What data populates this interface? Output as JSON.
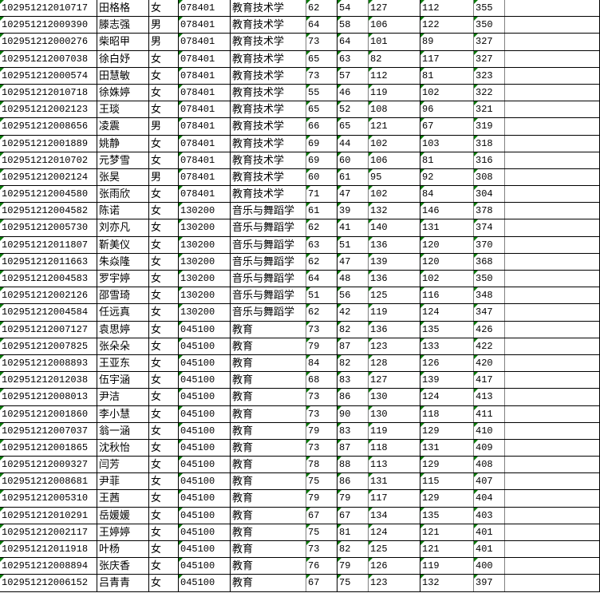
{
  "indicator_color": "#0a7a0a",
  "rows": [
    [
      "102951212010717",
      "田格格",
      "女",
      "078401",
      "教育技术学",
      "62",
      "54",
      "127",
      "112",
      "355"
    ],
    [
      "102951212009390",
      "滕志强",
      "男",
      "078401",
      "教育技术学",
      "64",
      "58",
      "106",
      "122",
      "350"
    ],
    [
      "102951212000276",
      "柴昭甲",
      "男",
      "078401",
      "教育技术学",
      "73",
      "64",
      "101",
      "89",
      "327"
    ],
    [
      "102951212007038",
      "徐白妤",
      "女",
      "078401",
      "教育技术学",
      "65",
      "63",
      "82",
      "117",
      "327"
    ],
    [
      "102951212000574",
      "田慧敏",
      "女",
      "078401",
      "教育技术学",
      "73",
      "57",
      "112",
      "81",
      "323"
    ],
    [
      "102951212010718",
      "徐姝婷",
      "女",
      "078401",
      "教育技术学",
      "55",
      "46",
      "119",
      "102",
      "322"
    ],
    [
      "102951212002123",
      "王琰",
      "女",
      "078401",
      "教育技术学",
      "65",
      "52",
      "108",
      "96",
      "321"
    ],
    [
      "102951212008656",
      "凌震",
      "男",
      "078401",
      "教育技术学",
      "66",
      "65",
      "121",
      "67",
      "319"
    ],
    [
      "102951212001889",
      "姚静",
      "女",
      "078401",
      "教育技术学",
      "69",
      "44",
      "102",
      "103",
      "318"
    ],
    [
      "102951212010702",
      "元梦雪",
      "女",
      "078401",
      "教育技术学",
      "69",
      "60",
      "106",
      "81",
      "316"
    ],
    [
      "102951212002124",
      "张昊",
      "男",
      "078401",
      "教育技术学",
      "60",
      "61",
      "95",
      "92",
      "308"
    ],
    [
      "102951212004580",
      "张雨欣",
      "女",
      "078401",
      "教育技术学",
      "71",
      "47",
      "102",
      "84",
      "304"
    ],
    [
      "102951212004582",
      "陈诺",
      "女",
      "130200",
      "音乐与舞蹈学",
      "61",
      "39",
      "132",
      "146",
      "378"
    ],
    [
      "102951212005730",
      "刘亦凡",
      "女",
      "130200",
      "音乐与舞蹈学",
      "62",
      "41",
      "140",
      "131",
      "374"
    ],
    [
      "102951212011807",
      "靳美仪",
      "女",
      "130200",
      "音乐与舞蹈学",
      "63",
      "51",
      "136",
      "120",
      "370"
    ],
    [
      "102951212011663",
      "朱焱隆",
      "女",
      "130200",
      "音乐与舞蹈学",
      "62",
      "47",
      "139",
      "120",
      "368"
    ],
    [
      "102951212004583",
      "罗宇婷",
      "女",
      "130200",
      "音乐与舞蹈学",
      "64",
      "48",
      "136",
      "102",
      "350"
    ],
    [
      "102951212002126",
      "邵雪琦",
      "女",
      "130200",
      "音乐与舞蹈学",
      "51",
      "56",
      "125",
      "116",
      "348"
    ],
    [
      "102951212004584",
      "任远真",
      "女",
      "130200",
      "音乐与舞蹈学",
      "62",
      "42",
      "119",
      "124",
      "347"
    ],
    [
      "102951212007127",
      "袁思婷",
      "女",
      "045100",
      "教育",
      "73",
      "82",
      "136",
      "135",
      "426"
    ],
    [
      "102951212007825",
      "张朵朵",
      "女",
      "045100",
      "教育",
      "79",
      "87",
      "123",
      "133",
      "422"
    ],
    [
      "102951212008893",
      "王亚东",
      "女",
      "045100",
      "教育",
      "84",
      "82",
      "128",
      "126",
      "420"
    ],
    [
      "102951212012038",
      "伍宇涵",
      "女",
      "045100",
      "教育",
      "68",
      "83",
      "127",
      "139",
      "417"
    ],
    [
      "102951212008013",
      "尹洁",
      "女",
      "045100",
      "教育",
      "73",
      "86",
      "130",
      "124",
      "413"
    ],
    [
      "102951212001860",
      "李小慧",
      "女",
      "045100",
      "教育",
      "73",
      "90",
      "130",
      "118",
      "411"
    ],
    [
      "102951212007037",
      "翁一涵",
      "女",
      "045100",
      "教育",
      "79",
      "83",
      "119",
      "129",
      "410"
    ],
    [
      "102951212001865",
      "沈秋怡",
      "女",
      "045100",
      "教育",
      "73",
      "87",
      "118",
      "131",
      "409"
    ],
    [
      "102951212009327",
      "闫芳",
      "女",
      "045100",
      "教育",
      "78",
      "88",
      "113",
      "129",
      "408"
    ],
    [
      "102951212008681",
      "尹菲",
      "女",
      "045100",
      "教育",
      "75",
      "86",
      "131",
      "115",
      "407"
    ],
    [
      "102951212005310",
      "王茜",
      "女",
      "045100",
      "教育",
      "79",
      "79",
      "117",
      "129",
      "404"
    ],
    [
      "102951212010291",
      "岳媛媛",
      "女",
      "045100",
      "教育",
      "67",
      "67",
      "134",
      "135",
      "403"
    ],
    [
      "102951212002117",
      "王婷婷",
      "女",
      "045100",
      "教育",
      "75",
      "81",
      "124",
      "121",
      "401"
    ],
    [
      "102951212011918",
      "叶杨",
      "女",
      "045100",
      "教育",
      "73",
      "82",
      "125",
      "121",
      "401"
    ],
    [
      "102951212008894",
      "张庆香",
      "女",
      "045100",
      "教育",
      "76",
      "79",
      "126",
      "119",
      "400"
    ],
    [
      "102951212006152",
      "吕青青",
      "女",
      "045100",
      "教育",
      "67",
      "75",
      "123",
      "132",
      "397"
    ]
  ]
}
